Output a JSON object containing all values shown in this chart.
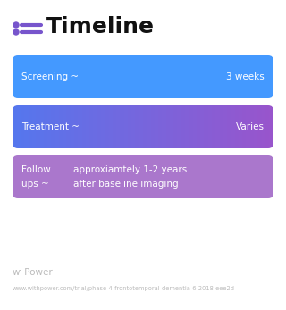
{
  "title": "Timeline",
  "title_fontsize": 18,
  "title_color": "#111111",
  "title_icon_color": "#7755cc",
  "background_color": "#ffffff",
  "cards": [
    {
      "label": "Screening ~",
      "value": "3 weeks",
      "color": "#4499ff",
      "gradient": false,
      "color_grad_left": null,
      "color_grad_right": null,
      "text_color": "#ffffff",
      "multiline": false,
      "label2": null,
      "value2": null
    },
    {
      "label": "Treatment ~",
      "value": "Varies",
      "color": "#7766bb",
      "gradient": true,
      "color_grad_left": "#5577ee",
      "color_grad_right": "#9955cc",
      "text_color": "#ffffff",
      "multiline": false,
      "label2": null,
      "value2": null
    },
    {
      "label": "Follow",
      "value": "approxiamtely 1-2 years",
      "label2": "ups ~",
      "value2": "after baseline imaging",
      "color": "#aa77cc",
      "gradient": false,
      "color_grad_left": null,
      "color_grad_right": null,
      "text_color": "#ffffff",
      "multiline": true
    }
  ],
  "footer_logo_color": "#aaaaaa",
  "footer_text": "www.withpower.com/trial/phase-4-frontotemporal-dementia-6-2018-eee2d",
  "footer_fontsize": 4.8,
  "power_fontsize": 7.5
}
